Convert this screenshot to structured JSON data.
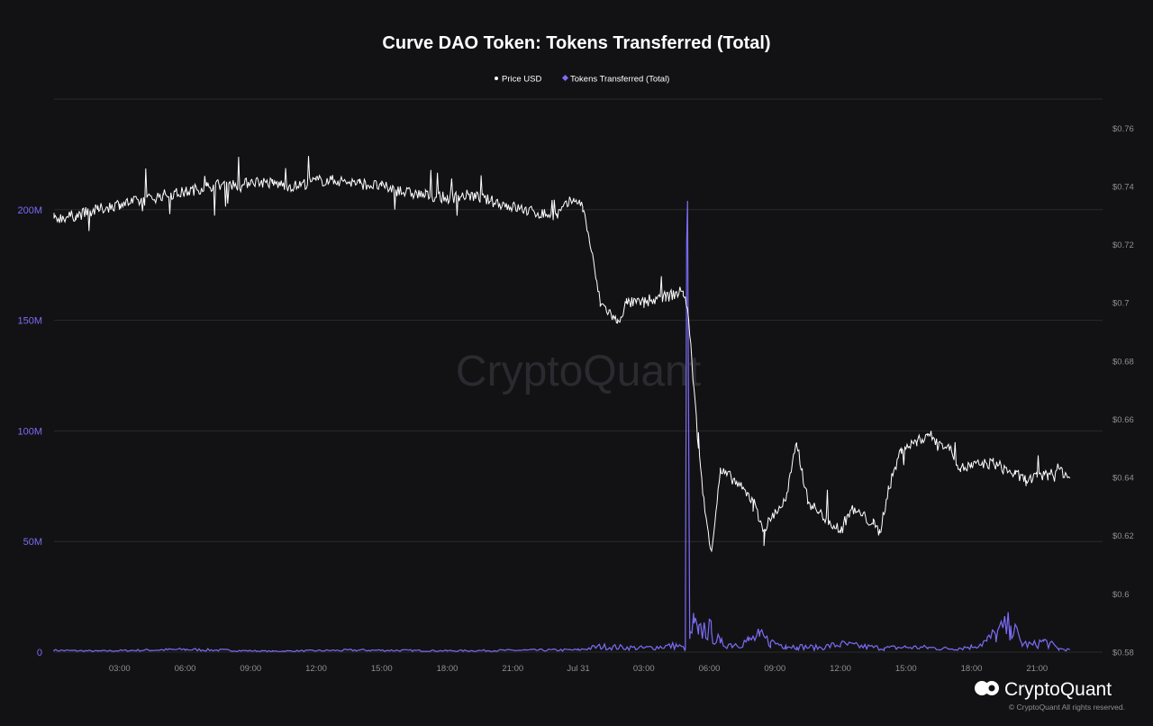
{
  "chart_data": {
    "type": "line",
    "title": "Curve DAO Token: Tokens Transferred (Total)",
    "legend": [
      {
        "name": "Price USD",
        "color": "#ffffff",
        "marker": "circle"
      },
      {
        "name": "Tokens Transferred (Total)",
        "color": "#7b6cf6",
        "marker": "diamond"
      }
    ],
    "legend_position": "top-center",
    "x_ticks": [
      "03:00",
      "06:00",
      "09:00",
      "12:00",
      "15:00",
      "18:00",
      "21:00",
      "Jul 31",
      "03:00",
      "06:00",
      "09:00",
      "12:00",
      "15:00",
      "18:00",
      "21:00"
    ],
    "y_left_ticks": [
      "0",
      "50M",
      "100M",
      "150M",
      "200M"
    ],
    "y_left_lim": [
      0,
      250000000
    ],
    "y_right_ticks": [
      "$0.58",
      "$0.6",
      "$0.62",
      "$0.64",
      "$0.66",
      "$0.68",
      "$0.7",
      "$0.72",
      "$0.74",
      "$0.76"
    ],
    "y_right_lim": [
      0.58,
      0.77
    ],
    "x_range_hours": [
      0,
      48
    ],
    "grid": "horizontal",
    "series": [
      {
        "name": "Price USD",
        "axis": "right",
        "color": "#ffffff",
        "points": [
          [
            0,
            0.729
          ],
          [
            1,
            0.73
          ],
          [
            2,
            0.732
          ],
          [
            3,
            0.734
          ],
          [
            4,
            0.735
          ],
          [
            5,
            0.737
          ],
          [
            6,
            0.738
          ],
          [
            7,
            0.74
          ],
          [
            8,
            0.741
          ],
          [
            8.6,
            0.74
          ],
          [
            9,
            0.742
          ],
          [
            10,
            0.741
          ],
          [
            11,
            0.74
          ],
          [
            12,
            0.742
          ],
          [
            13,
            0.742
          ],
          [
            14,
            0.741
          ],
          [
            15,
            0.74
          ],
          [
            16,
            0.738
          ],
          [
            17,
            0.737
          ],
          [
            18,
            0.736
          ],
          [
            19,
            0.737
          ],
          [
            20,
            0.735
          ],
          [
            21,
            0.733
          ],
          [
            22,
            0.731
          ],
          [
            23,
            0.73
          ],
          [
            23.8,
            0.736
          ],
          [
            24.2,
            0.733
          ],
          [
            24.5,
            0.722
          ],
          [
            25,
            0.7
          ],
          [
            25.4,
            0.697
          ],
          [
            25.8,
            0.693
          ],
          [
            26.2,
            0.7
          ],
          [
            27,
            0.7
          ],
          [
            28,
            0.702
          ],
          [
            28.8,
            0.704
          ],
          [
            29.0,
            0.698
          ],
          [
            29.2,
            0.68
          ],
          [
            29.5,
            0.65
          ],
          [
            29.8,
            0.628
          ],
          [
            30.1,
            0.615
          ],
          [
            30.5,
            0.642
          ],
          [
            31,
            0.64
          ],
          [
            31.5,
            0.636
          ],
          [
            32,
            0.632
          ],
          [
            32.5,
            0.622
          ],
          [
            33,
            0.628
          ],
          [
            33.5,
            0.632
          ],
          [
            34,
            0.652
          ],
          [
            34.5,
            0.632
          ],
          [
            35,
            0.628
          ],
          [
            35.5,
            0.625
          ],
          [
            36,
            0.622
          ],
          [
            36.5,
            0.629
          ],
          [
            37,
            0.627
          ],
          [
            37.5,
            0.624
          ],
          [
            37.8,
            0.621
          ],
          [
            38.2,
            0.636
          ],
          [
            38.8,
            0.65
          ],
          [
            39.5,
            0.652
          ],
          [
            40,
            0.655
          ],
          [
            40.5,
            0.652
          ],
          [
            41,
            0.65
          ],
          [
            41.5,
            0.643
          ],
          [
            42,
            0.644
          ],
          [
            43,
            0.645
          ],
          [
            44,
            0.641
          ],
          [
            44.5,
            0.639
          ],
          [
            45,
            0.64
          ],
          [
            45.5,
            0.641
          ],
          [
            46,
            0.643
          ],
          [
            46.5,
            0.64
          ]
        ]
      },
      {
        "name": "Tokens Transferred (Total)",
        "axis": "left",
        "color": "#7b6cf6",
        "points": [
          [
            0,
            800000
          ],
          [
            2,
            500000
          ],
          [
            6,
            1200000
          ],
          [
            10,
            400000
          ],
          [
            14,
            900000
          ],
          [
            18,
            600000
          ],
          [
            24,
            1000000
          ],
          [
            25,
            2500000
          ],
          [
            27,
            1800000
          ],
          [
            28.5,
            3000000
          ],
          [
            28.9,
            1500000
          ],
          [
            29.0,
            204000000
          ],
          [
            29.1,
            6000000
          ],
          [
            29.3,
            13000000
          ],
          [
            29.5,
            8000000
          ],
          [
            29.8,
            11000000
          ],
          [
            30.1,
            9000000
          ],
          [
            30.5,
            4000000
          ],
          [
            31,
            3500000
          ],
          [
            31.8,
            5000000
          ],
          [
            32.3,
            7000000
          ],
          [
            32.8,
            4500000
          ],
          [
            33.5,
            3000000
          ],
          [
            34,
            2500000
          ],
          [
            35,
            2000000
          ],
          [
            36,
            3500000
          ],
          [
            37,
            2500000
          ],
          [
            38,
            1800000
          ],
          [
            39,
            2200000
          ],
          [
            40,
            2000000
          ],
          [
            41,
            1500000
          ],
          [
            42,
            2500000
          ],
          [
            42.7,
            5000000
          ],
          [
            43.1,
            8000000
          ],
          [
            43.8,
            12000000
          ],
          [
            44.3,
            4000000
          ],
          [
            44.8,
            3000000
          ],
          [
            45.3,
            5000000
          ],
          [
            46,
            1500000
          ],
          [
            46.5,
            1000000
          ]
        ]
      }
    ]
  },
  "branding": {
    "watermark": "CryptoQuant",
    "logo_text": "CryptoQuant",
    "copyright": "© CryptoQuant All rights reserved."
  }
}
